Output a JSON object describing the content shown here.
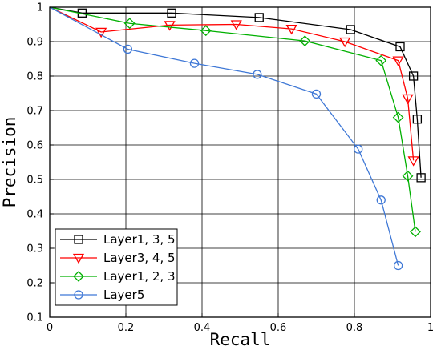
{
  "chart_data": {
    "type": "line",
    "title": "",
    "xlabel": "Recall",
    "ylabel": "Precision",
    "xlim": [
      0,
      1
    ],
    "ylim": [
      0.1,
      1
    ],
    "x_ticks": [
      0,
      0.2,
      0.4,
      0.6,
      0.8,
      1
    ],
    "x_tick_labels": [
      "0",
      "0.2",
      "0.4",
      "0.6",
      "0.8",
      "1"
    ],
    "y_ticks": [
      0.1,
      0.2,
      0.3,
      0.4,
      0.5,
      0.6,
      0.7,
      0.8,
      0.9,
      1
    ],
    "y_tick_labels": [
      "0.1",
      "0.2",
      "0.3",
      "0.4",
      "0.5",
      "0.6",
      "0.7",
      "0.8",
      "0.9",
      "1"
    ],
    "grid": true,
    "legend_position": "lower-left",
    "series": [
      {
        "name": "Layer1, 3, 5",
        "color": "#000000",
        "marker": "square",
        "x": [
          0,
          0.085,
          0.32,
          0.55,
          0.79,
          0.92,
          0.955,
          0.965,
          0.975
        ],
        "y": [
          1,
          0.983,
          0.983,
          0.97,
          0.935,
          0.885,
          0.8,
          0.675,
          0.505
        ]
      },
      {
        "name": "Layer3, 4, 5",
        "color": "#ff0000",
        "marker": "triangle-down",
        "x": [
          0,
          0.135,
          0.315,
          0.49,
          0.635,
          0.775,
          0.915,
          0.94,
          0.955
        ],
        "y": [
          1,
          0.928,
          0.948,
          0.95,
          0.937,
          0.9,
          0.845,
          0.735,
          0.555
        ]
      },
      {
        "name": "Layer1, 2, 3",
        "color": "#00b000",
        "marker": "diamond",
        "x": [
          0,
          0.21,
          0.41,
          0.67,
          0.87,
          0.915,
          0.94,
          0.96
        ],
        "y": [
          1,
          0.953,
          0.932,
          0.902,
          0.845,
          0.68,
          0.51,
          0.348
        ]
      },
      {
        "name": "Layer5",
        "color": "#3f78d6",
        "marker": "circle",
        "x": [
          0,
          0.205,
          0.38,
          0.545,
          0.7,
          0.81,
          0.87,
          0.915
        ],
        "y": [
          1,
          0.878,
          0.837,
          0.805,
          0.748,
          0.588,
          0.44,
          0.25
        ]
      }
    ]
  }
}
